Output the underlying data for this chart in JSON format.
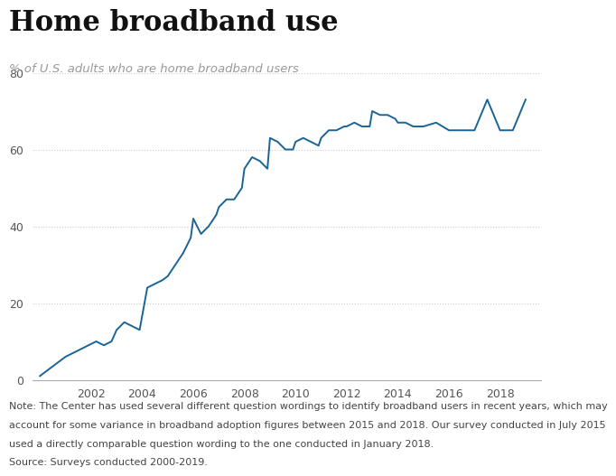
{
  "title": "Home broadband use",
  "subtitle": "% of U.S. adults who are home broadband users",
  "line_color": "#1a6496",
  "background_color": "#ffffff",
  "note_lines": [
    "Note: The Center has used several different question wordings to identify broadband users in recent years, which may",
    "account for some variance in broadband adoption figures between 2015 and 2018. Our survey conducted in July 2015",
    "used a directly comparable question wording to the one conducted in January 2018.",
    "Source: Surveys conducted 2000-2019."
  ],
  "ylim": [
    0,
    80
  ],
  "yticks": [
    0,
    20,
    40,
    60,
    80
  ],
  "xlim": [
    1999.7,
    2019.6
  ],
  "xticks": [
    2002,
    2004,
    2006,
    2008,
    2010,
    2012,
    2014,
    2016,
    2018
  ],
  "data": {
    "years": [
      2000.0,
      2001.0,
      2001.3,
      2001.6,
      2001.9,
      2002.2,
      2002.5,
      2002.8,
      2003.0,
      2003.3,
      2003.6,
      2003.9,
      2004.2,
      2004.5,
      2004.8,
      2005.0,
      2005.3,
      2005.6,
      2005.9,
      2006.0,
      2006.3,
      2006.6,
      2006.9,
      2007.0,
      2007.3,
      2007.6,
      2007.9,
      2008.0,
      2008.3,
      2008.6,
      2008.9,
      2009.0,
      2009.3,
      2009.6,
      2009.9,
      2010.0,
      2010.3,
      2010.6,
      2010.9,
      2011.0,
      2011.3,
      2011.6,
      2011.9,
      2012.0,
      2012.3,
      2012.6,
      2012.9,
      2013.0,
      2013.3,
      2013.6,
      2013.9,
      2014.0,
      2014.3,
      2014.6,
      2014.9,
      2015.0,
      2015.5,
      2016.0,
      2016.5,
      2017.0,
      2017.5,
      2018.0,
      2018.5,
      2019.0
    ],
    "values": [
      1,
      6,
      7,
      8,
      9,
      10,
      9,
      10,
      13,
      15,
      14,
      13,
      24,
      25,
      26,
      27,
      30,
      33,
      37,
      42,
      38,
      40,
      43,
      45,
      47,
      47,
      50,
      55,
      58,
      57,
      55,
      63,
      62,
      60,
      60,
      62,
      63,
      62,
      61,
      63,
      65,
      65,
      66,
      66,
      67,
      66,
      66,
      70,
      69,
      69,
      68,
      67,
      67,
      66,
      66,
      66,
      67,
      65,
      65,
      65,
      73,
      65,
      65,
      73
    ]
  }
}
